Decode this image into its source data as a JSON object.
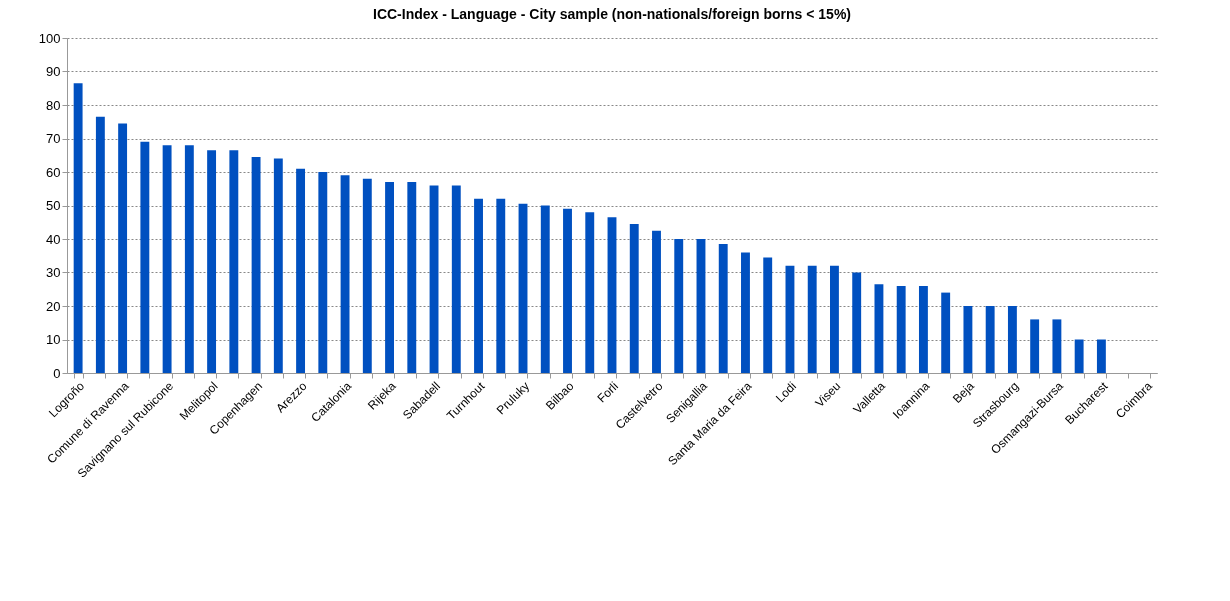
{
  "chart_data": {
    "type": "bar",
    "title": "ICC-Index - Language -  City sample (non-nationals/foreign borns < 15%)",
    "categories": [
      "Logroño",
      null,
      "Comune di Ravenna",
      null,
      "Savignano sul Rubicone",
      null,
      "Melitopol",
      null,
      "Copenhagen",
      null,
      "Arezzo",
      null,
      "Catalonia",
      null,
      "Rijeka",
      null,
      "Sabadell",
      null,
      "Turnhout",
      null,
      "Pruluky",
      null,
      "Bilbao",
      null,
      "Forli",
      null,
      "Castelvetro",
      null,
      "Senigallia",
      null,
      "Santa Maria da Feira",
      null,
      "Lodi",
      null,
      "Viseu",
      null,
      "Valletta",
      null,
      "Ioannina",
      null,
      "Beja",
      null,
      "Strasbourg",
      null,
      "Osmangazi-Bursa",
      null,
      "Bucharest",
      null,
      "Coimbra"
    ],
    "values": [
      86.5,
      76.5,
      74.5,
      69,
      68,
      68,
      66.5,
      66.5,
      64.5,
      64,
      61,
      60,
      59,
      58,
      57,
      57,
      56,
      56,
      52,
      52,
      50.5,
      50,
      49,
      48,
      46.5,
      44.5,
      42.5,
      40,
      40,
      38.5,
      36,
      34.5,
      32,
      32,
      32,
      30,
      26.5,
      26,
      26,
      24,
      20,
      20,
      20,
      16,
      16,
      10,
      10,
      0,
      0
    ],
    "color": "#0050c0",
    "ylim": [
      0,
      100
    ],
    "yticks": [
      0,
      10,
      20,
      30,
      40,
      50,
      60,
      70,
      80,
      90,
      100
    ],
    "grid": "y"
  }
}
